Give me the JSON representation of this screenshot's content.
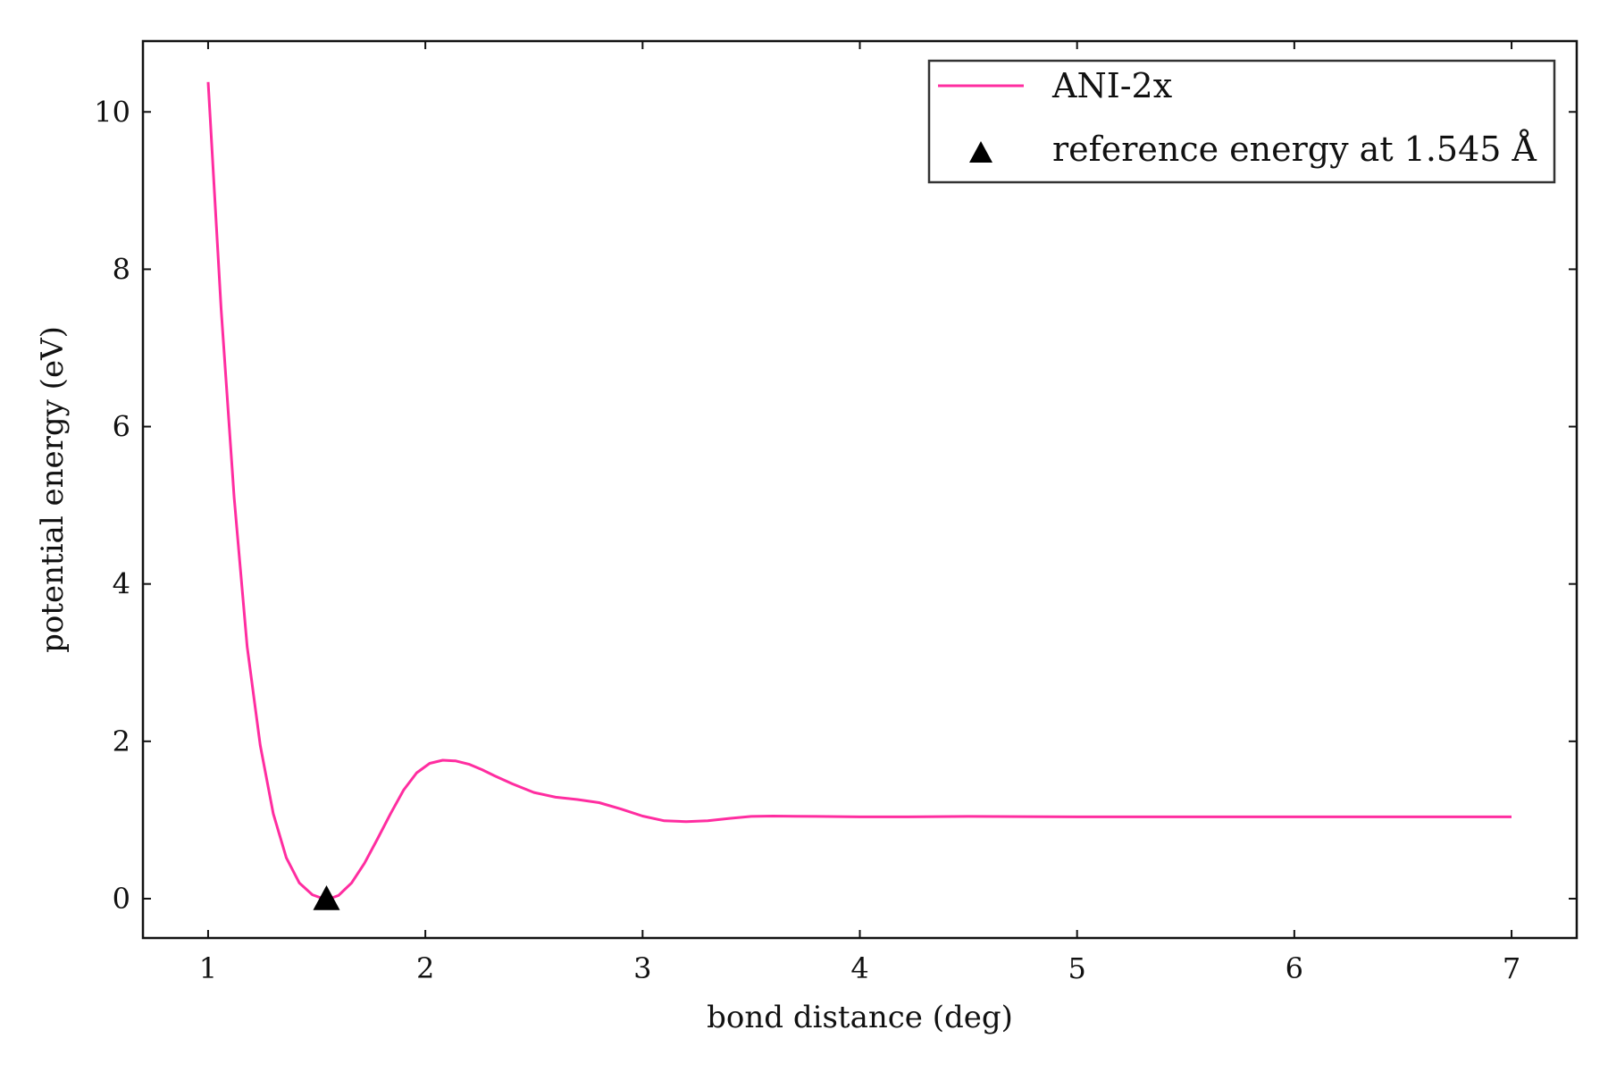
{
  "chart_data": {
    "type": "line",
    "title": "",
    "xlabel": "bond distance (deg)",
    "ylabel": "potential energy (eV)",
    "xlim": [
      0.7,
      7.3
    ],
    "ylim": [
      -0.5,
      10.9
    ],
    "xticks": [
      1,
      2,
      3,
      4,
      5,
      6,
      7
    ],
    "yticks": [
      0,
      2,
      4,
      6,
      8,
      10
    ],
    "grid": false,
    "legend_position": "top-right",
    "series": [
      {
        "name": "ANI-2x",
        "kind": "line",
        "color": "#ff2da0",
        "x": [
          1.0,
          1.06,
          1.12,
          1.18,
          1.24,
          1.3,
          1.36,
          1.42,
          1.48,
          1.52,
          1.56,
          1.6,
          1.66,
          1.72,
          1.78,
          1.84,
          1.9,
          1.96,
          2.02,
          2.08,
          2.14,
          2.2,
          2.26,
          2.32,
          2.4,
          2.5,
          2.6,
          2.7,
          2.8,
          2.9,
          3.0,
          3.1,
          3.2,
          3.3,
          3.4,
          3.5,
          3.6,
          3.8,
          4.0,
          4.2,
          4.5,
          5.0,
          5.5,
          6.0,
          6.5,
          7.0
        ],
        "y": [
          10.38,
          7.5,
          5.1,
          3.2,
          1.95,
          1.08,
          0.52,
          0.2,
          0.05,
          0.01,
          0.0,
          0.04,
          0.2,
          0.45,
          0.76,
          1.08,
          1.38,
          1.6,
          1.72,
          1.76,
          1.75,
          1.71,
          1.64,
          1.56,
          1.46,
          1.35,
          1.29,
          1.26,
          1.22,
          1.14,
          1.05,
          0.99,
          0.98,
          0.99,
          1.02,
          1.045,
          1.05,
          1.045,
          1.04,
          1.04,
          1.045,
          1.04,
          1.04,
          1.04,
          1.04,
          1.04
        ]
      },
      {
        "name": "reference energy at 1.545 Å",
        "kind": "marker",
        "marker": "triangle",
        "color": "#000000",
        "x": [
          1.545
        ],
        "y": [
          0.0
        ]
      }
    ]
  }
}
